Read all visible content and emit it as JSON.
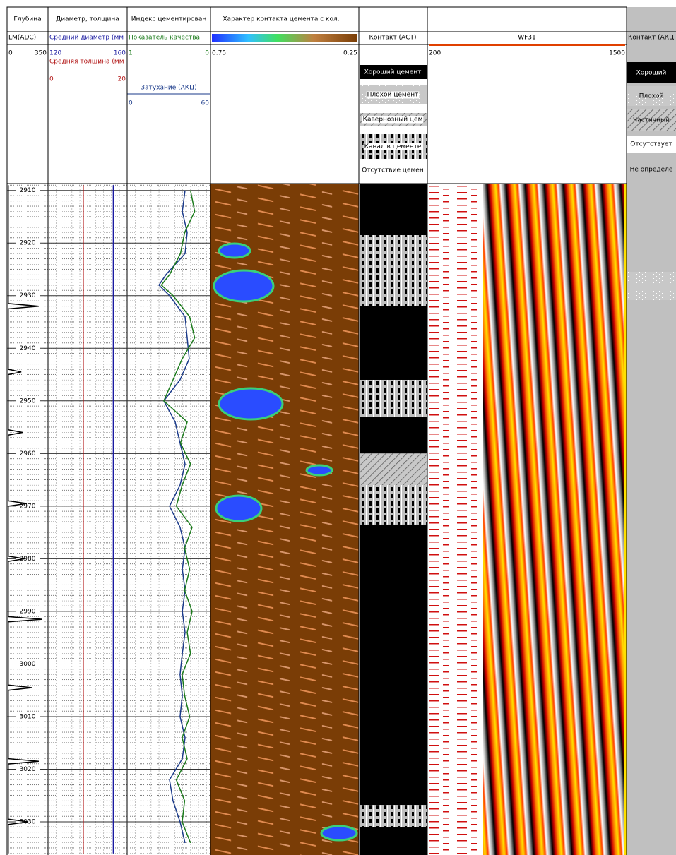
{
  "headers": [
    "Глубина",
    "Диаметр, толщина",
    "Индекс цементирован",
    "Характер контакта цемента с кол."
  ],
  "depth": {
    "lim": [
      2908.7,
      3036.3
    ],
    "ticks": [
      2910,
      2920,
      2930,
      2940,
      2950,
      2960,
      2970,
      2980,
      2990,
      3000,
      3010,
      3020,
      3030
    ]
  },
  "lm": {
    "name": "LM(ADC)",
    "color": "#000000",
    "scale": [
      0,
      350
    ],
    "depth": [
      2909,
      2931.5,
      2932,
      2932.5,
      2944,
      2944.5,
      2945,
      2955.5,
      2956,
      2956.5,
      2969,
      2969.5,
      2970,
      2979.5,
      2980,
      2980.5,
      2991,
      2991.5,
      2992,
      3004,
      3004.5,
      3005,
      3018,
      3018.5,
      3019,
      3029.5,
      3030,
      3030.5,
      3036
    ],
    "values": [
      10,
      10,
      271,
      10,
      10,
      121,
      10,
      10,
      133,
      10,
      10,
      169,
      10,
      10,
      151,
      10,
      10,
      300,
      10,
      10,
      211,
      10,
      10,
      271,
      10,
      10,
      181,
      10,
      10
    ]
  },
  "diameter": {
    "name": "Средний диаметр (мм",
    "color": "#1a1aa0",
    "scale": [
      120,
      160
    ],
    "depth": [
      2909,
      3036
    ],
    "values": [
      153,
      153
    ]
  },
  "thickness": {
    "name": "Средняя толщина (мм",
    "color": "#b01010",
    "scale": [
      0,
      20
    ],
    "depth": [
      2909,
      3036
    ],
    "values": [
      8.9,
      8.9
    ]
  },
  "quality": {
    "name": "Показатель качества",
    "color": "#1a7a1a",
    "scale": [
      1,
      0
    ],
    "depth": [
      2910,
      2914,
      2918,
      2922,
      2926,
      2928,
      2930,
      2934,
      2938,
      2942,
      2946,
      2950,
      2954,
      2958,
      2962,
      2966,
      2970,
      2974,
      2978,
      2982,
      2986,
      2990,
      2994,
      2998,
      3002,
      3006,
      3010,
      3014,
      3018,
      3022,
      3026,
      3030,
      3034
    ],
    "values": [
      0.24,
      0.19,
      0.31,
      0.36,
      0.49,
      0.59,
      0.45,
      0.25,
      0.19,
      0.34,
      0.45,
      0.56,
      0.28,
      0.36,
      0.24,
      0.34,
      0.41,
      0.22,
      0.31,
      0.25,
      0.31,
      0.22,
      0.28,
      0.24,
      0.34,
      0.31,
      0.25,
      0.34,
      0.28,
      0.41,
      0.31,
      0.34,
      0.24
    ]
  },
  "attenuation": {
    "name": "Затухание (АКЦ)",
    "color": "#1a3a8a",
    "scale": [
      0,
      60
    ],
    "depth": [
      2910,
      2914,
      2918,
      2922,
      2926,
      2928,
      2930,
      2934,
      2938,
      2942,
      2946,
      2950,
      2954,
      2958,
      2962,
      2966,
      2970,
      2974,
      2978,
      2982,
      2986,
      2990,
      2994,
      2998,
      3002,
      3006,
      3010,
      3014,
      3018,
      3022,
      3026,
      3030,
      3034
    ],
    "values": [
      41.7,
      39.7,
      43.2,
      41.7,
      28,
      22.9,
      30.5,
      41.7,
      43.2,
      44.7,
      38.1,
      26.4,
      34.6,
      38.1,
      41.7,
      38.1,
      30.5,
      38.1,
      41.7,
      39.7,
      41.7,
      39.7,
      41.7,
      39.7,
      38.1,
      39.7,
      38.1,
      41.7,
      39.7,
      30.5,
      33,
      38.1,
      41.7
    ]
  },
  "contact_image": {
    "colorbar": [
      0.75,
      0.25
    ]
  },
  "contact_act": {
    "name": "Контакт (АСТ)",
    "legend": [
      "Хороший цемент",
      "Плохой цемент",
      "Кавернозный цем",
      "Канал в цементе",
      "Отсутствие цемен"
    ],
    "intervals": [
      {
        "top": 2908.7,
        "bottom": 2918.5,
        "type": "Хороший цемент"
      },
      {
        "top": 2918.5,
        "bottom": 2932,
        "type": "Канал в цементе"
      },
      {
        "top": 2932,
        "bottom": 2946,
        "type": "Хороший цемент"
      },
      {
        "top": 2946,
        "bottom": 2953,
        "type": "Канал в цементе"
      },
      {
        "top": 2953,
        "bottom": 2960,
        "type": "Хороший цемент"
      },
      {
        "top": 2960,
        "bottom": 2966,
        "type": "Кавернозный цем"
      },
      {
        "top": 2966,
        "bottom": 2973.5,
        "type": "Канал в цементе"
      },
      {
        "top": 2973.5,
        "bottom": 3026.8,
        "type": "Хороший цемент"
      },
      {
        "top": 3026.8,
        "bottom": 3031,
        "type": "Канал в цементе"
      },
      {
        "top": 3031,
        "bottom": 3036.3,
        "type": "Хороший цемент"
      }
    ]
  },
  "wf": {
    "name": "WF31",
    "scale": [
      200,
      1500
    ]
  },
  "contact_akc": {
    "name": "Контакт (АКЦ",
    "legend": [
      "Хороший",
      "Плохой",
      "Частичный",
      "Отсутствует",
      "Не определе"
    ]
  }
}
